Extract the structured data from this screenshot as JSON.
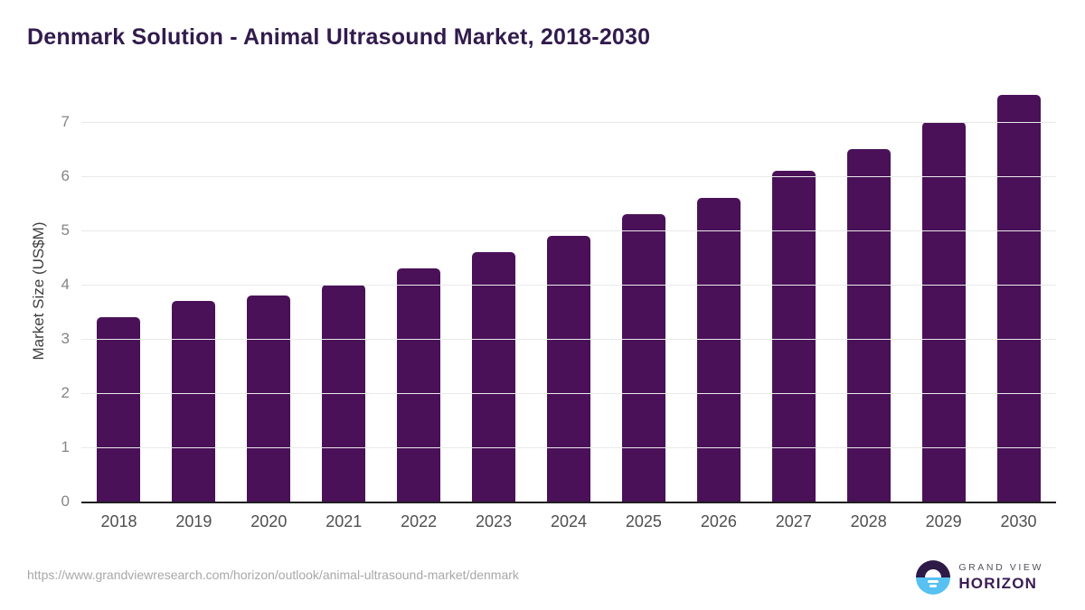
{
  "title": "Denmark Solution - Animal Ultrasound Market, 2018-2030",
  "chart_data": {
    "type": "bar",
    "title": "Denmark Solution - Animal Ultrasound Market, 2018-2030",
    "categories": [
      "2018",
      "2019",
      "2020",
      "2021",
      "2022",
      "2023",
      "2024",
      "2025",
      "2026",
      "2027",
      "2028",
      "2029",
      "2030"
    ],
    "values": [
      3.4,
      3.7,
      3.8,
      4.0,
      4.3,
      4.6,
      4.9,
      5.3,
      5.6,
      6.1,
      6.5,
      7.0,
      7.5
    ],
    "xlabel": "",
    "ylabel": "Market Size (US$M)",
    "ylim": [
      0,
      7.5
    ],
    "yticks": [
      0,
      1,
      2,
      3,
      4,
      5,
      6,
      7
    ],
    "grid": true,
    "legend": false,
    "bar_color": "#4a1158"
  },
  "footer": {
    "source_url": "https://www.grandviewresearch.com/horizon/outlook/animal-ultrasound-market/denmark"
  },
  "logo": {
    "brand_line1": "GRAND VIEW",
    "brand_line2": "HORIZON"
  },
  "colors": {
    "bar": "#4a1158",
    "title": "#321b4d",
    "grid": "#e9e9e9",
    "axis_line": "#1f1f1f",
    "logo_dark": "#2e1a47",
    "logo_blue": "#57c2f1"
  }
}
